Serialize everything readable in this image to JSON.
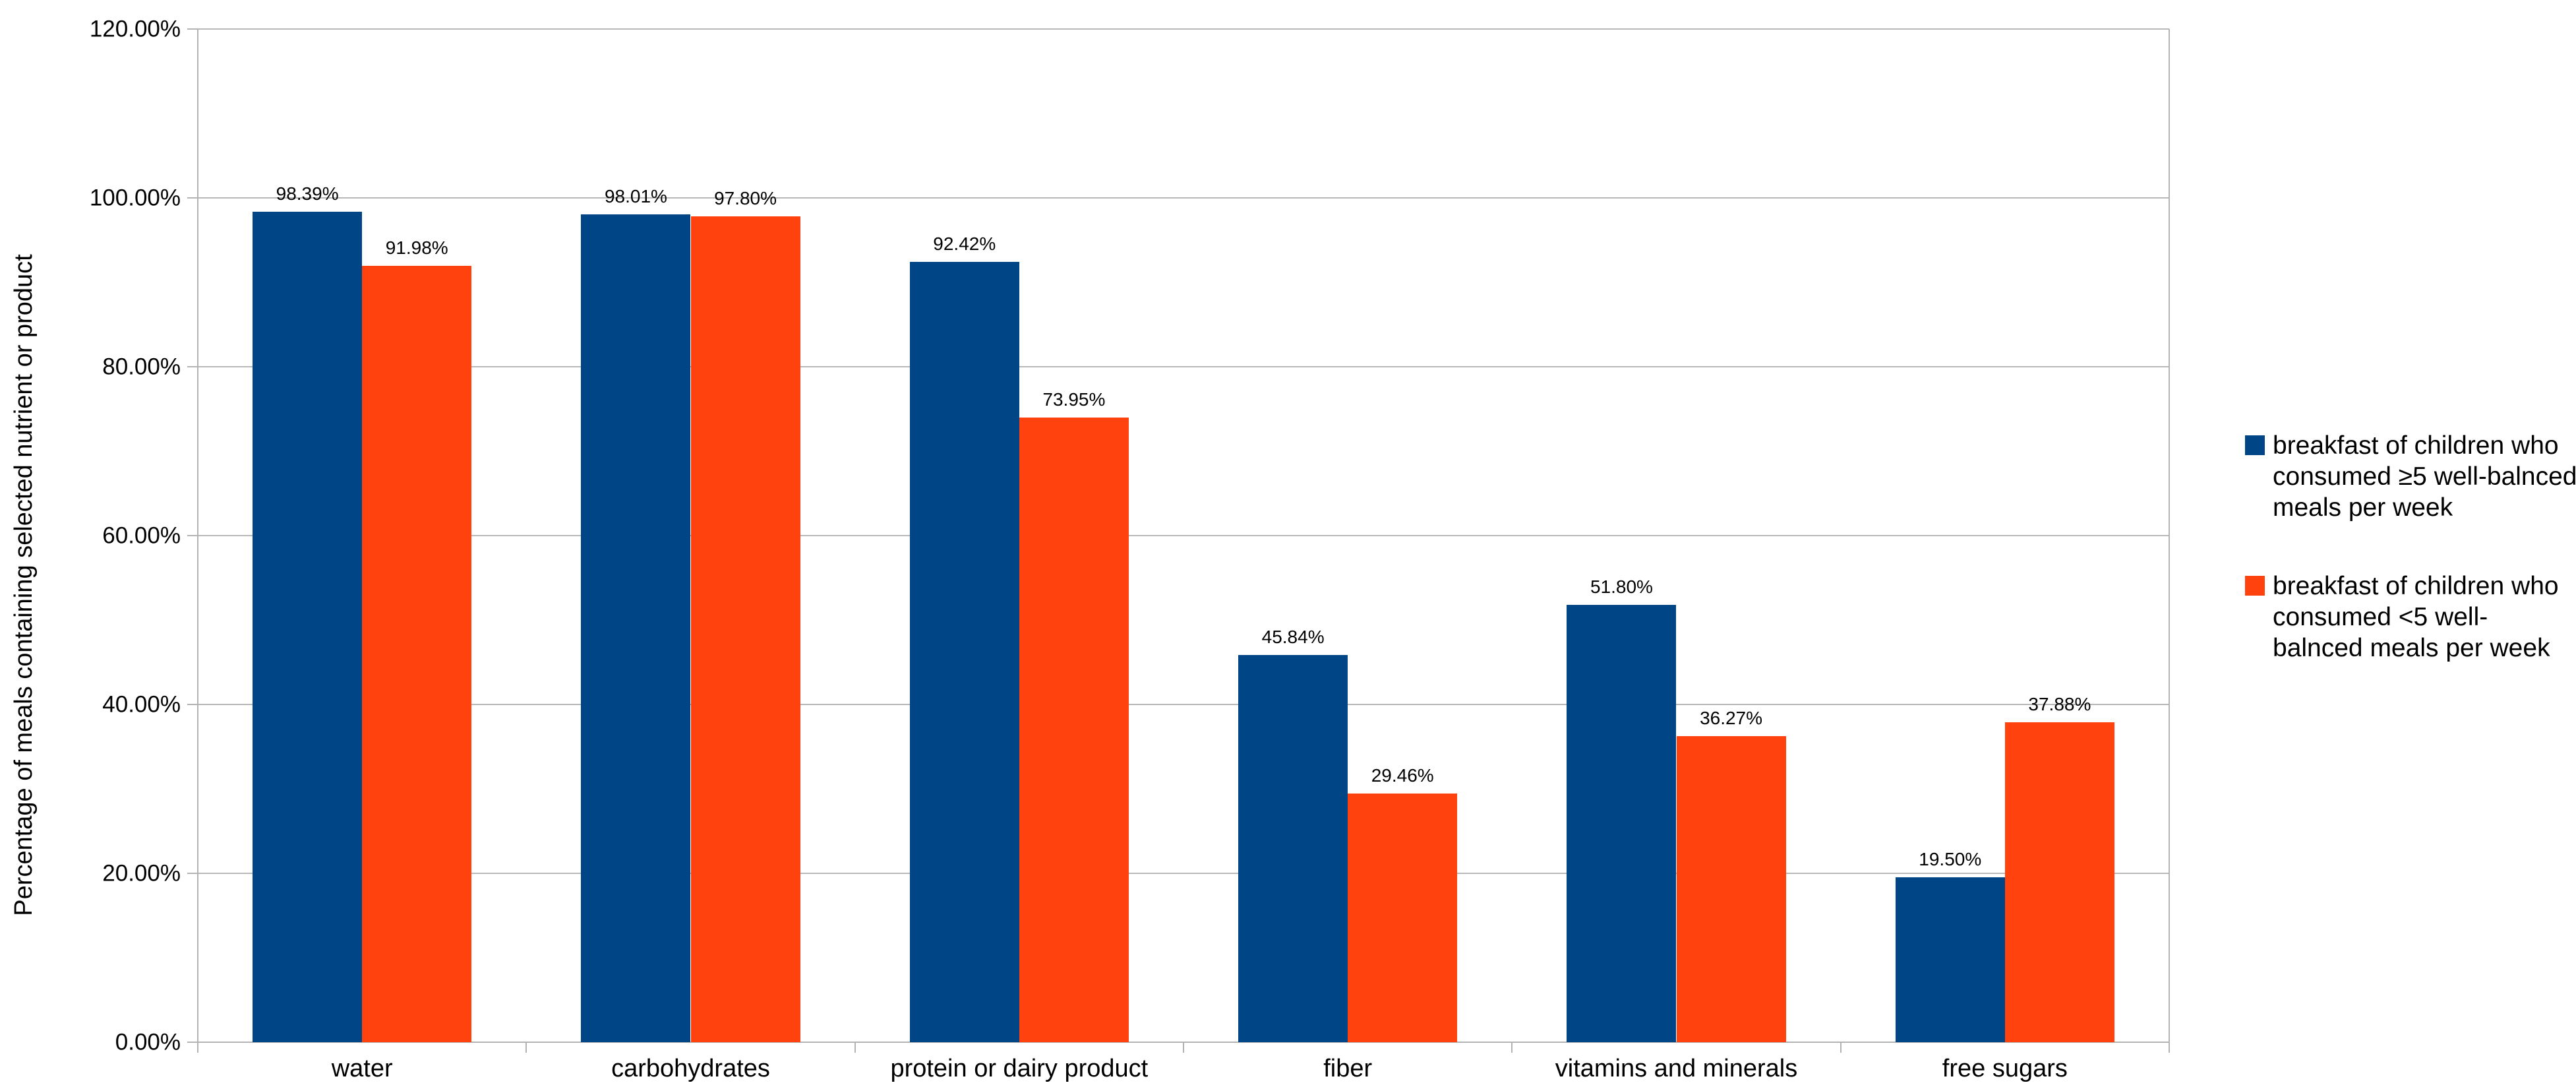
{
  "page": {
    "background": "#ffffff"
  },
  "chart_data": {
    "type": "bar",
    "title": "",
    "xlabel": "",
    "ylabel": "Percentage of meals containing selected nutrient or product",
    "ylim": [
      0,
      120
    ],
    "ytick_step": 20,
    "yticks": [
      "120.00%",
      "100.00%",
      "80.00%",
      "60.00%",
      "40.00%",
      "20.00%",
      "0.00%"
    ],
    "grid": "horizontal",
    "legend_position": "right",
    "categories": [
      "water",
      "carbohydrates",
      "protein or dairy product",
      "fiber",
      "vitamins and minerals",
      "free sugars"
    ],
    "series": [
      {
        "name": "breakfast of children who consumed ≥5 well-balnced meals per week",
        "color": "#004586",
        "values": [
          98.39,
          98.01,
          92.42,
          45.84,
          51.8,
          19.5
        ],
        "labels": [
          "98.39%",
          "98.01%",
          "92.42%",
          "45.84%",
          "51.80%",
          "19.50%"
        ]
      },
      {
        "name": "breakfast of children who consumed <5 well-balnced meals per week",
        "color": "#FF420E",
        "values": [
          91.98,
          97.8,
          73.95,
          29.46,
          36.27,
          37.88
        ],
        "labels": [
          "91.98%",
          "97.80%",
          "73.95%",
          "29.46%",
          "36.27%",
          "37.88%"
        ]
      }
    ],
    "colors": {
      "gridline": "#b8b8b8",
      "axis": "#b3b3b3",
      "text": "#000000"
    }
  }
}
